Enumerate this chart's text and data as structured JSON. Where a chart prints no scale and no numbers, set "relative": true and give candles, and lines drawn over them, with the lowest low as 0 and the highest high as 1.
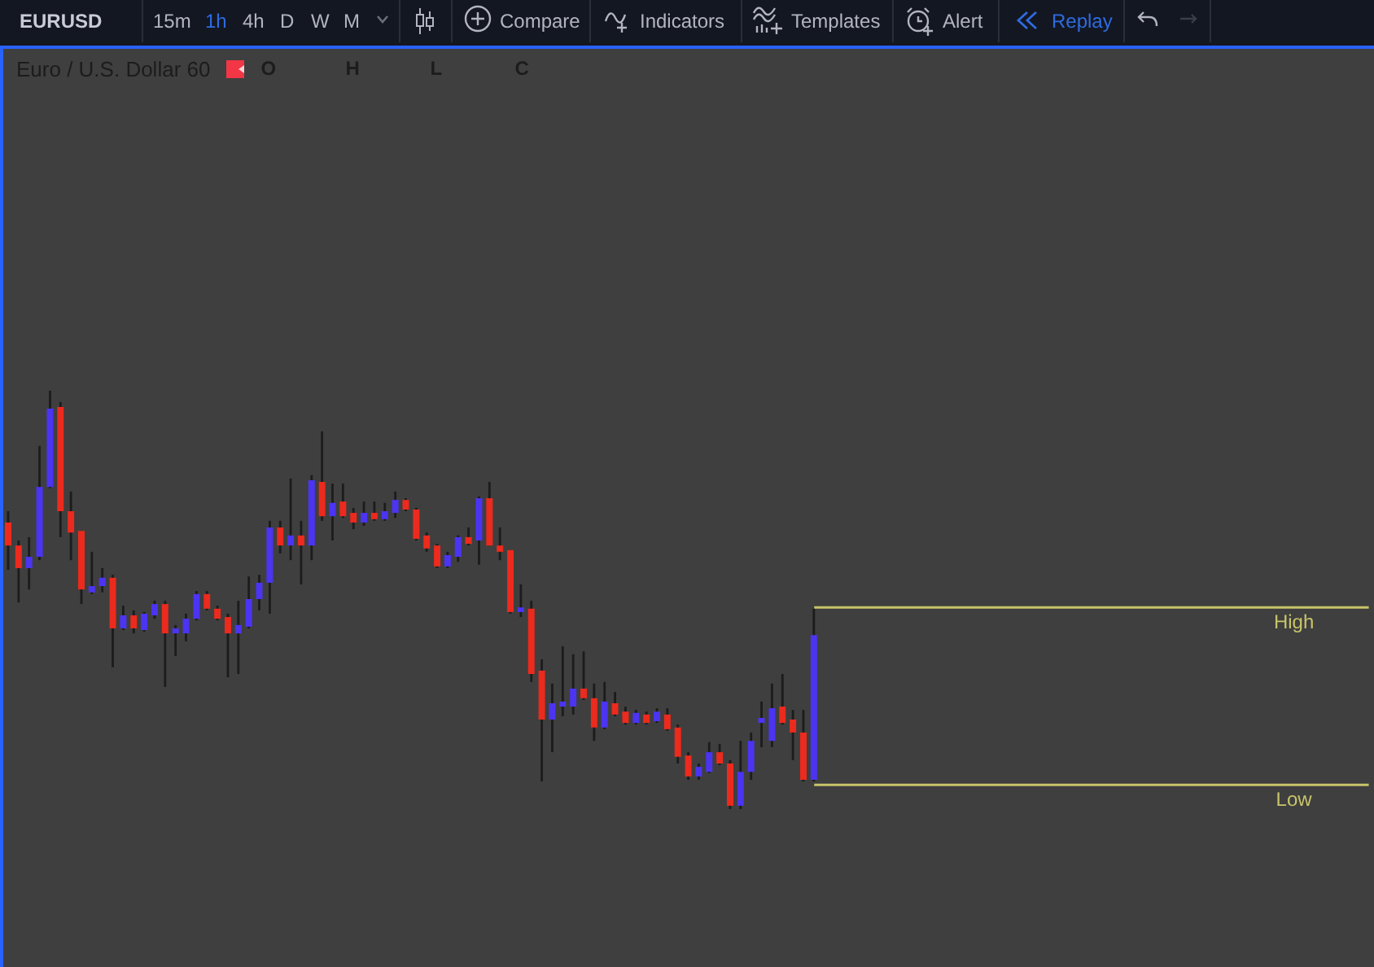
{
  "chart_data": {
    "type": "candlestick",
    "title": "Euro / U.S. Dollar 60",
    "relative": true,
    "color": "#1c1c1c",
    "annotations": [
      "EURUSD",
      "15m",
      "1h",
      "4h",
      "D",
      "W",
      "M",
      "Compare",
      "Indicators",
      "Templates",
      "Alert",
      "Replay",
      "O",
      "H",
      "L",
      "C"
    ],
    "categories": [
      null,
      null,
      null,
      null,
      null,
      null,
      null,
      null,
      null,
      null,
      null,
      null,
      null,
      null,
      null,
      null,
      null,
      null,
      null,
      null,
      null,
      null,
      null,
      null,
      null,
      null,
      null,
      null,
      null,
      null,
      null,
      null,
      null,
      null,
      null,
      null,
      null,
      null,
      null,
      null,
      null,
      null,
      null,
      null,
      null,
      null,
      null,
      null,
      null,
      null,
      null,
      null,
      null,
      null,
      null,
      null,
      null,
      null,
      null,
      null,
      null,
      null,
      null,
      null,
      null,
      null,
      null,
      null,
      null,
      null,
      null,
      null,
      null,
      null,
      null,
      null,
      null,
      null,
      null,
      null,
      null,
      null,
      null,
      null,
      null,
      null,
      null,
      null,
      null,
      null,
      null,
      null,
      null,
      null,
      null,
      null,
      null,
      null,
      null,
      null,
      null,
      null,
      null,
      null,
      null,
      null,
      null,
      null,
      null,
      null,
      null,
      null,
      null,
      null,
      null,
      null,
      null,
      null,
      null,
      null,
      null,
      null,
      null,
      null,
      null,
      null,
      null,
      null,
      null,
      null,
      null
    ],
    "ohlc": [
      [
        0.685,
        0.712,
        0.572,
        0.63
      ],
      [
        0.63,
        0.642,
        0.494,
        0.576
      ],
      [
        0.576,
        0.65,
        0.525,
        0.603
      ],
      [
        0.603,
        0.868,
        0.595,
        0.77
      ],
      [
        0.77,
        1.0,
        0.767,
        0.957
      ],
      [
        0.961,
        0.973,
        0.65,
        0.712
      ],
      [
        0.712,
        0.759,
        0.595,
        0.661
      ],
      [
        0.665,
        0.665,
        0.49,
        0.525
      ],
      [
        0.518,
        0.615,
        0.514,
        0.533
      ],
      [
        0.533,
        0.576,
        0.518,
        0.553
      ],
      [
        0.553,
        0.56,
        0.339,
        0.432
      ],
      [
        0.432,
        0.486,
        0.428,
        0.463
      ],
      [
        0.463,
        0.475,
        0.42,
        0.432
      ],
      [
        0.428,
        0.471,
        0.424,
        0.467
      ],
      [
        0.463,
        0.498,
        0.455,
        0.49
      ],
      [
        0.49,
        0.498,
        0.292,
        0.42
      ],
      [
        0.42,
        0.44,
        0.366,
        0.432
      ],
      [
        0.42,
        0.467,
        0.401,
        0.455
      ],
      [
        0.455,
        0.521,
        0.451,
        0.514
      ],
      [
        0.514,
        0.521,
        0.475,
        0.479
      ],
      [
        0.479,
        0.486,
        0.451,
        0.455
      ],
      [
        0.459,
        0.467,
        0.315,
        0.42
      ],
      [
        0.42,
        0.498,
        0.323,
        0.44
      ],
      [
        0.436,
        0.556,
        0.432,
        0.502
      ],
      [
        0.502,
        0.56,
        0.475,
        0.541
      ],
      [
        0.541,
        0.689,
        0.467,
        0.673
      ],
      [
        0.673,
        0.689,
        0.611,
        0.63
      ],
      [
        0.63,
        0.79,
        0.595,
        0.654
      ],
      [
        0.654,
        0.689,
        0.537,
        0.63
      ],
      [
        0.63,
        0.798,
        0.595,
        0.786
      ],
      [
        0.782,
        0.903,
        0.689,
        0.7
      ],
      [
        0.7,
        0.778,
        0.642,
        0.732
      ],
      [
        0.735,
        0.778,
        0.696,
        0.7
      ],
      [
        0.708,
        0.72,
        0.669,
        0.685
      ],
      [
        0.685,
        0.735,
        0.677,
        0.708
      ],
      [
        0.708,
        0.735,
        0.689,
        0.693
      ],
      [
        0.693,
        0.732,
        0.689,
        0.712
      ],
      [
        0.708,
        0.759,
        0.696,
        0.739
      ],
      [
        0.739,
        0.743,
        0.712,
        0.716
      ],
      [
        0.716,
        0.72,
        0.642,
        0.646
      ],
      [
        0.654,
        0.661,
        0.615,
        0.623
      ],
      [
        0.63,
        0.634,
        0.576,
        0.58
      ],
      [
        0.58,
        0.615,
        0.576,
        0.607
      ],
      [
        0.603,
        0.654,
        0.591,
        0.65
      ],
      [
        0.65,
        0.673,
        0.63,
        0.634
      ],
      [
        0.642,
        0.747,
        0.584,
        0.743
      ],
      [
        0.743,
        0.782,
        0.63,
        0.63
      ],
      [
        0.63,
        0.673,
        0.595,
        0.615
      ],
      [
        0.619,
        0.619,
        0.467,
        0.471
      ],
      [
        0.471,
        0.537,
        0.459,
        0.482
      ],
      [
        0.479,
        0.498,
        0.304,
        0.323
      ],
      [
        0.331,
        0.358,
        0.066,
        0.214
      ],
      [
        0.214,
        0.3,
        0.136,
        0.253
      ],
      [
        0.245,
        0.389,
        0.222,
        0.257
      ],
      [
        0.245,
        0.37,
        0.226,
        0.288
      ],
      [
        0.288,
        0.377,
        0.261,
        0.265
      ],
      [
        0.265,
        0.3,
        0.163,
        0.195
      ],
      [
        0.195,
        0.304,
        0.191,
        0.257
      ],
      [
        0.253,
        0.28,
        0.222,
        0.226
      ],
      [
        0.233,
        0.245,
        0.202,
        0.206
      ],
      [
        0.206,
        0.237,
        0.202,
        0.23
      ],
      [
        0.226,
        0.233,
        0.202,
        0.206
      ],
      [
        0.21,
        0.241,
        0.206,
        0.233
      ],
      [
        0.226,
        0.241,
        0.187,
        0.191
      ],
      [
        0.195,
        0.202,
        0.109,
        0.125
      ],
      [
        0.128,
        0.136,
        0.07,
        0.078
      ],
      [
        0.078,
        0.109,
        0.07,
        0.101
      ],
      [
        0.089,
        0.16,
        0.086,
        0.136
      ],
      [
        0.136,
        0.156,
        0.105,
        0.109
      ],
      [
        0.109,
        0.117,
        0,
        0.008
      ],
      [
        0.008,
        0.163,
        0,
        0.089
      ],
      [
        0.089,
        0.183,
        0.07,
        0.163
      ],
      [
        0.206,
        0.257,
        0.148,
        0.218
      ],
      [
        0.163,
        0.3,
        0.148,
        0.241
      ],
      [
        0.245,
        0.323,
        0.202,
        0.206
      ],
      [
        0.214,
        0.237,
        0.117,
        0.183
      ],
      [
        0.183,
        0.237,
        0.066,
        0.07
      ],
      [
        0.07,
        0.479,
        0.066,
        0.416
      ],
      null,
      null,
      null,
      null,
      null,
      null,
      null,
      null,
      null,
      null,
      null,
      null,
      null,
      null,
      null,
      null,
      null,
      null,
      null,
      null,
      null,
      null,
      null,
      null,
      null,
      null,
      null,
      null,
      null,
      null,
      null,
      null,
      null,
      null,
      null,
      null,
      null,
      null,
      null,
      null,
      null,
      null,
      null,
      null,
      null,
      null,
      null,
      null,
      null,
      null,
      null,
      null,
      null
    ],
    "colors": [
      "#ec2a1d",
      "#ec2a1d",
      "#4b34f2",
      "#4b34f2",
      "#4b34f2",
      "#ec2a1d",
      "#ec2a1d",
      "#ec2a1d",
      "#4b34f2",
      "#4b34f2",
      "#ec2a1d",
      "#4b34f2",
      "#ec2a1d",
      "#4b34f2",
      "#4b34f2",
      "#ec2a1d",
      "#4b34f2",
      "#4b34f2",
      "#4b34f2",
      "#ec2a1d",
      "#ec2a1d",
      "#ec2a1d",
      "#4b34f2",
      "#4b34f2",
      "#4b34f2",
      "#4b34f2",
      "#ec2a1d",
      "#4b34f2",
      "#ec2a1d",
      "#4b34f2",
      "#ec2a1d",
      "#4b34f2",
      "#ec2a1d",
      "#ec2a1d",
      "#4b34f2",
      "#ec2a1d",
      "#4b34f2",
      "#4b34f2",
      "#ec2a1d",
      "#ec2a1d",
      "#ec2a1d",
      "#ec2a1d",
      "#4b34f2",
      "#4b34f2",
      "#ec2a1d",
      "#4b34f2",
      "#ec2a1d",
      "#ec2a1d",
      "#ec2a1d",
      "#4b34f2",
      "#ec2a1d",
      "#ec2a1d",
      "#4b34f2",
      "#4b34f2",
      "#4b34f2",
      "#ec2a1d",
      "#ec2a1d",
      "#4b34f2",
      "#ec2a1d",
      "#ec2a1d",
      "#4b34f2",
      "#ec2a1d",
      "#4b34f2",
      "#ec2a1d",
      "#ec2a1d",
      "#ec2a1d",
      "#4b34f2",
      "#4b34f2",
      "#ec2a1d",
      "#ec2a1d",
      "#4b34f2",
      "#4b34f2",
      "#4b34f2",
      "#4b34f2",
      "#ec2a1d",
      "#ec2a1d",
      "#ec2a1d",
      "#4b34f2",
      null,
      null,
      null,
      null,
      null,
      null,
      null,
      null,
      null,
      null,
      null,
      null,
      null,
      null,
      null,
      null,
      null,
      null,
      null,
      null,
      null,
      null,
      null,
      null,
      null,
      null,
      null,
      null,
      null,
      null,
      null,
      null,
      null,
      null,
      null,
      null,
      null,
      null,
      null,
      null,
      null,
      null,
      null,
      null,
      null,
      null,
      null,
      null,
      null,
      null,
      null,
      null,
      null
    ],
    "ref_lines": [
      {
        "axis": "y",
        "value": 0.482,
        "label": "High",
        "color": "#c8c46a"
      },
      {
        "axis": "y",
        "value": 0.058,
        "label": "Low",
        "color": "#c8c46a"
      }
    ]
  }
}
